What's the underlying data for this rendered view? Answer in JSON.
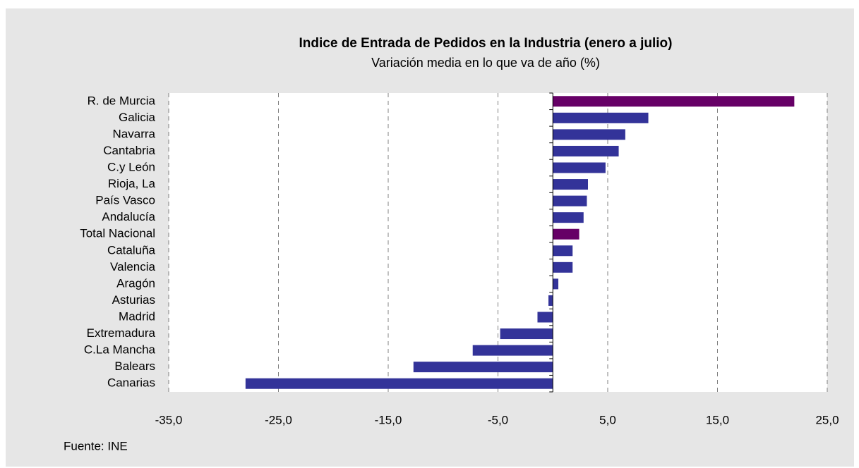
{
  "chart_data": {
    "type": "barh",
    "title": "Indice de Entrada de Pedidos en la Industria (enero a julio)",
    "subtitle": "Variación media en lo que va de año (%)",
    "source": "Fuente: INE",
    "categories": [
      "R. de Murcia",
      "Galicia",
      "Navarra",
      "Cantabria",
      "C.y León",
      "Rioja, La",
      "País Vasco",
      "Andalucía",
      "Total Nacional",
      "Cataluña",
      "Valencia",
      "Aragón",
      "Asturias",
      "Madrid",
      "Extremadura",
      "C.La Mancha",
      "Balears",
      "Canarias"
    ],
    "values": [
      22.0,
      8.7,
      6.6,
      6.0,
      4.8,
      3.2,
      3.1,
      2.8,
      2.4,
      1.8,
      1.8,
      0.5,
      -0.4,
      -1.4,
      -4.8,
      -7.3,
      -12.7,
      -28.0
    ],
    "colors": [
      "#660066",
      "#333399",
      "#333399",
      "#333399",
      "#333399",
      "#333399",
      "#333399",
      "#333399",
      "#660066",
      "#333399",
      "#333399",
      "#333399",
      "#333399",
      "#333399",
      "#333399",
      "#333399",
      "#333399",
      "#333399"
    ],
    "xlim": [
      -35,
      25
    ],
    "xticks": [
      {
        "value": -35,
        "label": "-35,0"
      },
      {
        "value": -25,
        "label": "-25,0"
      },
      {
        "value": -15,
        "label": "-15,0"
      },
      {
        "value": -5,
        "label": "-5,0"
      },
      {
        "value": 5,
        "label": "5,0"
      },
      {
        "value": 15,
        "label": "15,0"
      },
      {
        "value": 25,
        "label": "25,0"
      }
    ],
    "grid": true
  }
}
